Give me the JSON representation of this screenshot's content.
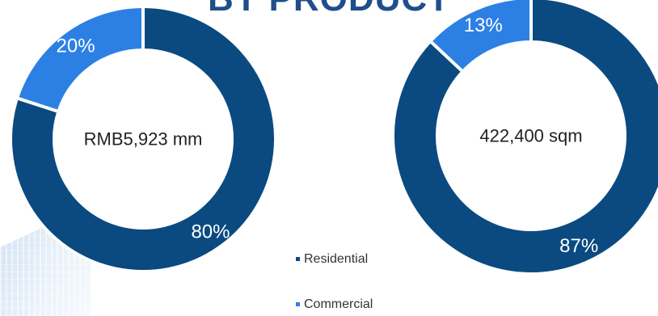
{
  "page": {
    "title": "BY PRODUCT"
  },
  "legend": {
    "items": [
      {
        "label": "Residential",
        "color": "#0b4a80"
      },
      {
        "label": "Commercial",
        "color": "#2c80e4"
      }
    ]
  },
  "chart_data": [
    {
      "type": "pie",
      "categories": [
        "Residential",
        "Commercial"
      ],
      "values": [
        80,
        20
      ],
      "value_labels": [
        "80%",
        "20%"
      ],
      "center_label": "RMB5,923 mm",
      "colors": [
        "#0b4a80",
        "#2c80e4"
      ]
    },
    {
      "type": "pie",
      "categories": [
        "Residential",
        "Commercial"
      ],
      "values": [
        87,
        13
      ],
      "value_labels": [
        "87%",
        "13%"
      ],
      "center_label": "422,400 sqm",
      "colors": [
        "#0b4a80",
        "#2c80e4"
      ]
    }
  ]
}
